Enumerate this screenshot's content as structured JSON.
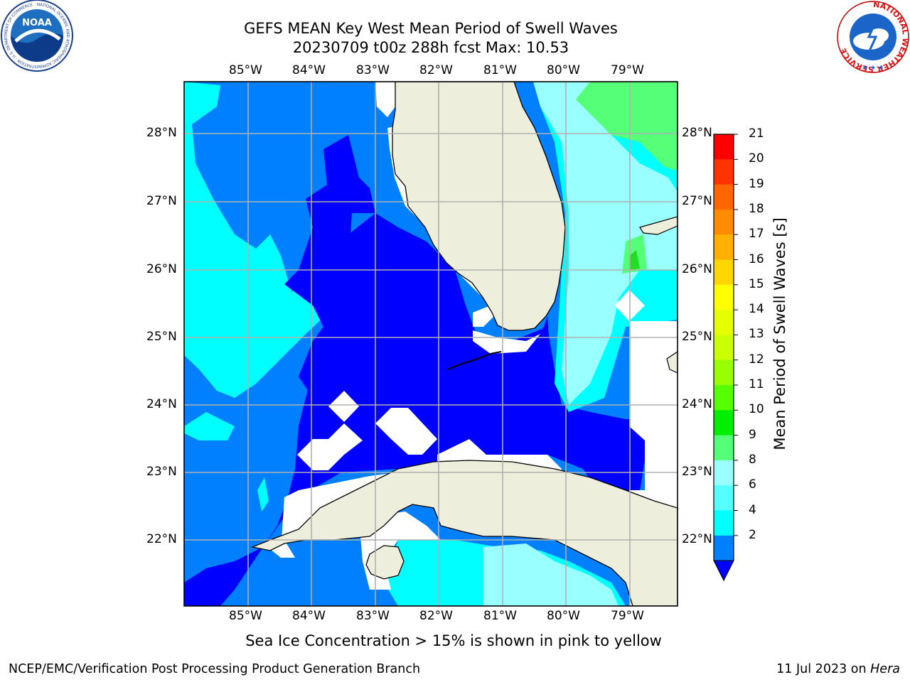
{
  "title": {
    "line1": "GEFS MEAN Key West Mean Period of Swell Waves",
    "line2": "20230709 t00z 288h fcst   Max: 10.53"
  },
  "map": {
    "lon_labels": [
      "85°W",
      "84°W",
      "83°W",
      "82°W",
      "81°W",
      "80°W",
      "79°W"
    ],
    "lat_labels": [
      "28°N",
      "27°N",
      "26°N",
      "25°N",
      "24°N",
      "23°N",
      "22°N"
    ],
    "ocean_palette": {
      "deep_blue": "#0000ff",
      "mid_blue": "#0080ff",
      "cyan": "#00ffff",
      "light_cyan": "#99ffff",
      "green": "#55ff77",
      "bright_green": "#22dd22",
      "land": "#eeeedd",
      "missing": "#ffffff"
    }
  },
  "colorbar": {
    "label": "Mean Period of Swell Waves [s]",
    "ticks": [
      "21",
      "20",
      "19",
      "18",
      "17",
      "16",
      "15",
      "14",
      "13",
      "12",
      "11",
      "10",
      "9",
      "8",
      "6",
      "4",
      "2"
    ],
    "colors": [
      "#ff0000",
      "#ff3300",
      "#ff6600",
      "#ff8c00",
      "#ffb000",
      "#ffd700",
      "#ffff00",
      "#e6ff00",
      "#ccff00",
      "#99ff00",
      "#55ff00",
      "#00ee00",
      "#55ff77",
      "#99ffff",
      "#55ffff",
      "#00ffff",
      "#0080ff"
    ],
    "extend_color": "#0000ff"
  },
  "note": "Sea Ice Concentration > 15% is shown in pink to yellow",
  "footer": {
    "left": "NCEP/EMC/Verification Post Processing Product Generation Branch",
    "right_date": "11 Jul 2023 on ",
    "right_machine": "Hera"
  },
  "logos": {
    "left": "NOAA",
    "left_ring": "NATIONAL OCEANIC AND ATMOSPHERIC ADMINISTRATION · U.S. DEPARTMENT OF COMMERCE",
    "right_ring": "NATIONAL WEATHER SERVICE"
  }
}
